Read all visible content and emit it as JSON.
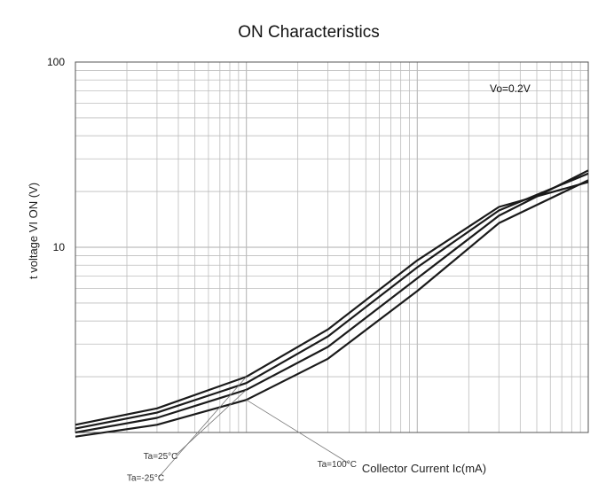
{
  "chart_data": {
    "type": "line",
    "title": "ON Characteristics",
    "xlabel": "Collector Current   Ic(mA)",
    "ylabel": "t voltage VI ON (V)",
    "yscale": "log",
    "ylim": [
      1,
      100
    ],
    "y_ticks": [
      {
        "value": 100,
        "label": "100"
      },
      {
        "value": 10,
        "label": "10"
      }
    ],
    "xscale": "log",
    "xlim": [
      0.1,
      100
    ],
    "grid": true,
    "legend": "none",
    "annotation": "Vo=0.2V",
    "series": [
      {
        "name": "Ta=-25°C",
        "x": [
          0.1,
          0.3,
          1,
          3,
          10,
          30,
          100
        ],
        "y": [
          1.1,
          1.35,
          2.0,
          3.6,
          8.5,
          16.5,
          22.5
        ]
      },
      {
        "name": "",
        "x": [
          0.1,
          0.3,
          1,
          3,
          10,
          30,
          100
        ],
        "y": [
          1.05,
          1.28,
          1.85,
          3.3,
          7.8,
          15.8,
          25.0
        ]
      },
      {
        "name": "Ta=25°C",
        "x": [
          0.1,
          0.3,
          1,
          3,
          10,
          30,
          100
        ],
        "y": [
          1.0,
          1.2,
          1.7,
          2.9,
          6.8,
          14.8,
          26.0
        ]
      },
      {
        "name": "Ta=100°C",
        "x": [
          0.1,
          0.3,
          1,
          3,
          10,
          30,
          100
        ],
        "y": [
          0.95,
          1.1,
          1.5,
          2.5,
          5.8,
          13.5,
          23.0
        ]
      }
    ],
    "colors": {
      "grid": "#bdbdbd",
      "frame": "#555555",
      "line": "#1a1a1a"
    }
  }
}
